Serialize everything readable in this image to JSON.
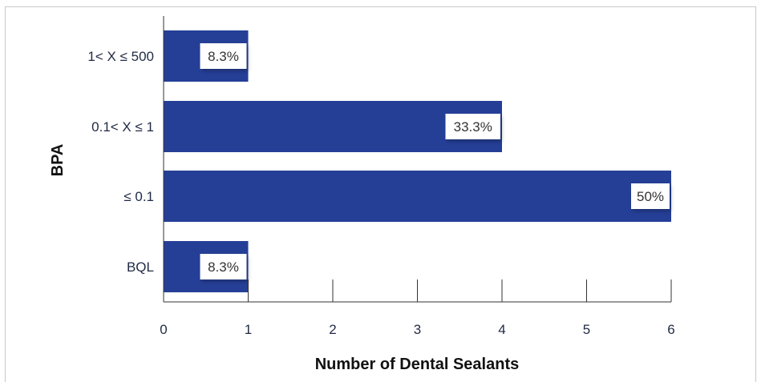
{
  "chart_data": {
    "type": "bar",
    "orientation": "horizontal",
    "categories": [
      "1< X ≤ 500",
      "0.1< X ≤ 1",
      "≤ 0.1",
      "BQL"
    ],
    "values": [
      1,
      4,
      6,
      1
    ],
    "data_labels": [
      "8.3%",
      "33.3%",
      "50%",
      "8.3%"
    ],
    "xlabel": "Number of Dental Sealants",
    "ylabel": "BPA",
    "xlim": [
      0,
      6
    ],
    "xticks": [
      "0",
      "1",
      "2",
      "3",
      "4",
      "5",
      "6"
    ],
    "grid": false,
    "bar_color": "#253f97"
  }
}
